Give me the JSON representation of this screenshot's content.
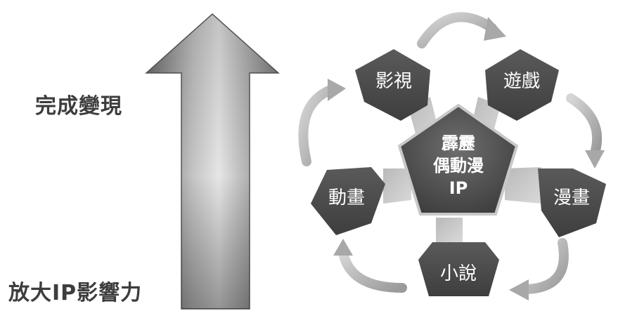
{
  "labels": {
    "top": "完成變現",
    "bottom": "放大IP影響力"
  },
  "center": {
    "line1": "霹靂",
    "line2": "偶動漫",
    "line3": "IP"
  },
  "nodes": [
    {
      "id": "film",
      "label": "影視"
    },
    {
      "id": "game",
      "label": "遊戲"
    },
    {
      "id": "comic",
      "label": "漫畫"
    },
    {
      "id": "novel",
      "label": "小說"
    },
    {
      "id": "animation",
      "label": "動畫"
    }
  ]
}
